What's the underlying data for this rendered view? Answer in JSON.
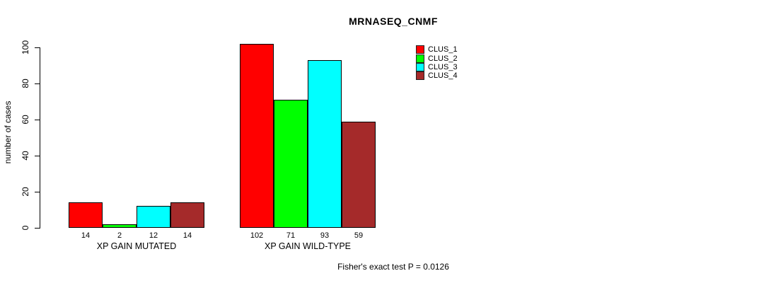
{
  "chart_data": {
    "type": "bar",
    "title": "MRNASEQ_CNMF",
    "ylabel": "number of cases",
    "xlabel": "",
    "categories": [
      "XP GAIN MUTATED",
      "XP GAIN WILD-TYPE"
    ],
    "series": [
      {
        "name": "CLUS_1",
        "color": "#FF0000",
        "values": [
          14,
          102
        ]
      },
      {
        "name": "CLUS_2",
        "color": "#00FF00",
        "values": [
          2,
          71
        ]
      },
      {
        "name": "CLUS_3",
        "color": "#00FFFF",
        "values": [
          12,
          93
        ]
      },
      {
        "name": "CLUS_4",
        "color": "#A52A2A",
        "values": [
          14,
          59
        ]
      }
    ],
    "bar_value_labels": [
      [
        "14",
        "2",
        "12",
        "14"
      ],
      [
        "102",
        "71",
        "93",
        "59"
      ]
    ],
    "yticks": [
      0,
      20,
      40,
      60,
      80,
      100
    ],
    "ylim": [
      0,
      102
    ],
    "grid": false,
    "legend_position": "top-right",
    "annotation": "Fisher's exact test P = 0.0126"
  }
}
